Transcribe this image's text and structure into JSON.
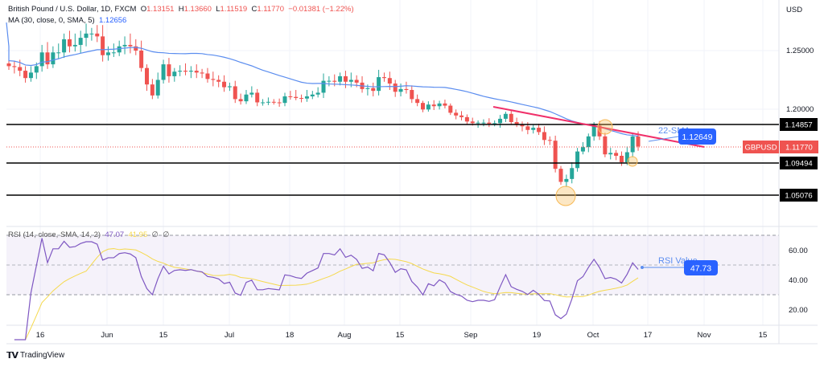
{
  "header": {
    "symbol_title": "British Pound / U.S. Dollar, 1D, FXCM",
    "ohlc": {
      "o_label": "O",
      "o": "1.13151",
      "h_label": "H",
      "h": "1.13660",
      "l_label": "L",
      "l": "1.11519",
      "c_label": "C",
      "c": "1.11770",
      "change": "−0.01381 (−1.22%)"
    },
    "ma_label": "MA (30, close, 0, SMA, 5)",
    "ma_value": "1.12656"
  },
  "rsi_legend": {
    "label": "RSI (14, close, SMA, 14, 2)",
    "rsi": "47.07",
    "sma": "41.95",
    "extra1": "∅",
    "extra2": "∅"
  },
  "price_axis": {
    "currency": "USD",
    "ticks": [
      "1.25000",
      "1.20000"
    ]
  },
  "levels": [
    {
      "price": 1.14857,
      "label": "1.14857"
    },
    {
      "price": 1.09494,
      "label": "1.09494"
    },
    {
      "price": 1.05076,
      "label": "1.05076"
    }
  ],
  "current": {
    "symbol": "GBPUSD",
    "price": "1.11770"
  },
  "annotations": {
    "sma_label": "22-SMA",
    "sma_value": "1.12649",
    "rsi_label": "RSI Value",
    "rsi_value": "47.73"
  },
  "rsi_axis": {
    "ticks": [
      "60.00",
      "40.00",
      "20.00"
    ]
  },
  "time_axis": {
    "ticks": [
      "16",
      "Jun",
      "15",
      "Jul",
      "18",
      "Aug",
      "15",
      "Sep",
      "19",
      "Oct",
      "17",
      "Nov",
      "15"
    ]
  },
  "colors": {
    "up": "#26a69a",
    "down": "#ef5350",
    "ma": "#5b8def",
    "trend": "#f0306a",
    "rsi": "#7e57c2",
    "rsi_sma": "#f5d94c",
    "circle": "#f7b955"
  },
  "brand": "TradingView",
  "chart_data": {
    "type": "candlestick",
    "closes": [
      1.233,
      1.232,
      1.228,
      1.22,
      1.226,
      1.233,
      1.248,
      1.235,
      1.248,
      1.248,
      1.258,
      1.253,
      1.254,
      1.259,
      1.262,
      1.262,
      1.26,
      1.245,
      1.248,
      1.248,
      1.253,
      1.254,
      1.253,
      1.25,
      1.231,
      1.213,
      1.201,
      1.218,
      1.235,
      1.222,
      1.227,
      1.228,
      1.227,
      1.228,
      1.226,
      1.225,
      1.219,
      1.218,
      1.216,
      1.21,
      1.211,
      1.195,
      1.191,
      1.202,
      1.204,
      1.189,
      1.189,
      1.19,
      1.189,
      1.188,
      1.2,
      1.199,
      1.197,
      1.196,
      1.2,
      1.202,
      1.204,
      1.217,
      1.217,
      1.216,
      1.222,
      1.216,
      1.218,
      1.215,
      1.208,
      1.209,
      1.206,
      1.221,
      1.22,
      1.214,
      1.205,
      1.208,
      1.207,
      1.195,
      1.188,
      1.176,
      1.185,
      1.182,
      1.187,
      1.183,
      1.17,
      1.165,
      1.162,
      1.154,
      1.151,
      1.152,
      1.152,
      1.15,
      1.151,
      1.159,
      1.168,
      1.153,
      1.149,
      1.146,
      1.141,
      1.144,
      1.138,
      1.127,
      1.126,
      1.087,
      1.069,
      1.073,
      1.088,
      1.111,
      1.117,
      1.132,
      1.147,
      1.132,
      1.107,
      1.109,
      1.105,
      1.096,
      1.11,
      1.132,
      1.118
    ],
    "ma_period": 30,
    "rsi_period": 14,
    "rsi_sma_period": 14
  }
}
